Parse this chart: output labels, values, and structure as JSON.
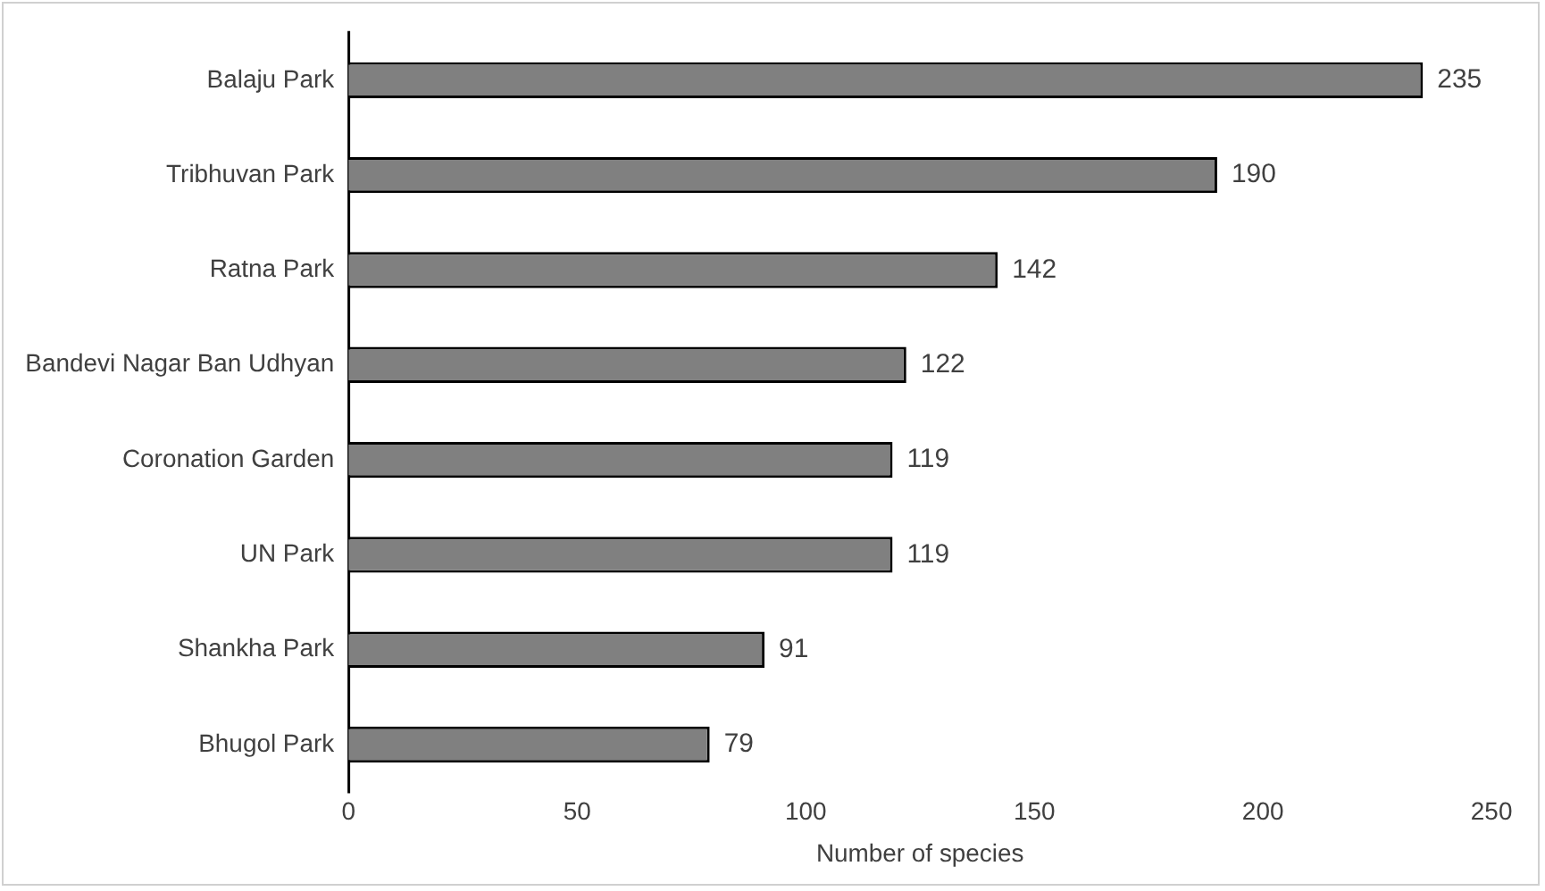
{
  "chart_data": {
    "type": "bar",
    "orientation": "horizontal",
    "xlabel": "Number of species",
    "categories": [
      "Balaju Park",
      "Tribhuvan Park",
      "Ratna Park",
      "Bandevi Nagar Ban Udhyan",
      "Coronation Garden",
      "UN Park",
      "Shankha Park",
      "Bhugol Park"
    ],
    "values": [
      235,
      190,
      142,
      122,
      119,
      119,
      91,
      79
    ],
    "color": "#808080",
    "xlim": [
      0,
      250
    ],
    "xticks": [
      0,
      50,
      100,
      150,
      200,
      250
    ],
    "data_labels": true,
    "grid": false,
    "legend": false
  }
}
